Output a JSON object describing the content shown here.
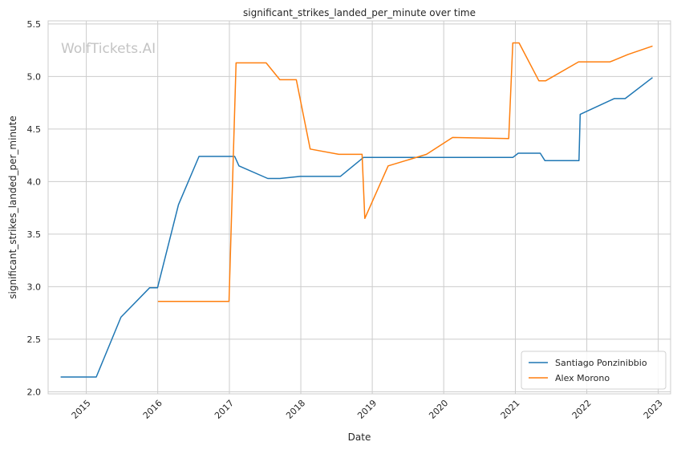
{
  "watermark": "WolfTickets.AI",
  "chart_data": {
    "type": "line",
    "title": "significant_strikes_landed_per_minute over time",
    "xlabel": "Date",
    "ylabel": "significant_strikes_landed_per_minute",
    "xlim": [
      "2014-06-20",
      "2023-03-05"
    ],
    "ylim": [
      1.98,
      5.53
    ],
    "x_ticks": [
      "2015-01-01",
      "2016-01-01",
      "2017-01-01",
      "2018-01-01",
      "2019-01-01",
      "2020-01-01",
      "2021-01-01",
      "2022-01-01",
      "2023-01-01"
    ],
    "x_tick_labels": [
      "2015",
      "2016",
      "2017",
      "2018",
      "2019",
      "2020",
      "2021",
      "2022",
      "2023"
    ],
    "y_ticks": [
      2.0,
      2.5,
      3.0,
      3.5,
      4.0,
      4.5,
      5.0,
      5.5
    ],
    "y_tick_labels": [
      "2.0",
      "2.5",
      "3.0",
      "3.5",
      "4.0",
      "4.5",
      "5.0",
      "5.5"
    ],
    "grid": true,
    "legend_position": "bottom-right",
    "series": [
      {
        "name": "Santiago Ponzinibbio",
        "color": "#1f77b4",
        "points": [
          [
            "2014-08-23",
            2.14
          ],
          [
            "2015-02-21",
            2.14
          ],
          [
            "2015-06-27",
            2.71
          ],
          [
            "2015-11-21",
            2.99
          ],
          [
            "2015-12-31",
            2.99
          ],
          [
            "2016-04-16",
            3.78
          ],
          [
            "2016-07-30",
            4.24
          ],
          [
            "2017-01-28",
            4.24
          ],
          [
            "2017-02-19",
            4.15
          ],
          [
            "2017-07-16",
            4.03
          ],
          [
            "2017-09-16",
            4.03
          ],
          [
            "2017-12-30",
            4.05
          ],
          [
            "2018-07-22",
            4.05
          ],
          [
            "2018-11-17",
            4.23
          ],
          [
            "2020-12-19",
            4.23
          ],
          [
            "2021-01-16",
            4.27
          ],
          [
            "2021-05-08",
            4.27
          ],
          [
            "2021-06-01",
            4.2
          ],
          [
            "2021-11-22",
            4.2
          ],
          [
            "2021-11-28",
            4.64
          ],
          [
            "2022-05-21",
            4.79
          ],
          [
            "2022-07-16",
            4.79
          ],
          [
            "2022-12-03",
            4.99
          ]
        ]
      },
      {
        "name": "Alex Morono",
        "color": "#ff7f0e",
        "points": [
          [
            "2016-01-02",
            2.86
          ],
          [
            "2016-12-30",
            2.86
          ],
          [
            "2017-02-04",
            5.13
          ],
          [
            "2017-07-08",
            5.13
          ],
          [
            "2017-09-16",
            4.97
          ],
          [
            "2017-12-09",
            4.97
          ],
          [
            "2018-02-18",
            4.31
          ],
          [
            "2018-07-14",
            4.26
          ],
          [
            "2018-11-10",
            4.26
          ],
          [
            "2018-11-24",
            3.65
          ],
          [
            "2019-03-23",
            4.15
          ],
          [
            "2019-10-05",
            4.26
          ],
          [
            "2020-02-15",
            4.42
          ],
          [
            "2020-11-28",
            4.41
          ],
          [
            "2020-12-19",
            5.32
          ],
          [
            "2021-01-20",
            5.32
          ],
          [
            "2021-05-01",
            4.96
          ],
          [
            "2021-06-05",
            4.96
          ],
          [
            "2021-11-20",
            5.14
          ],
          [
            "2022-04-30",
            5.14
          ],
          [
            "2022-07-30",
            5.21
          ],
          [
            "2022-12-03",
            5.29
          ]
        ]
      }
    ]
  }
}
